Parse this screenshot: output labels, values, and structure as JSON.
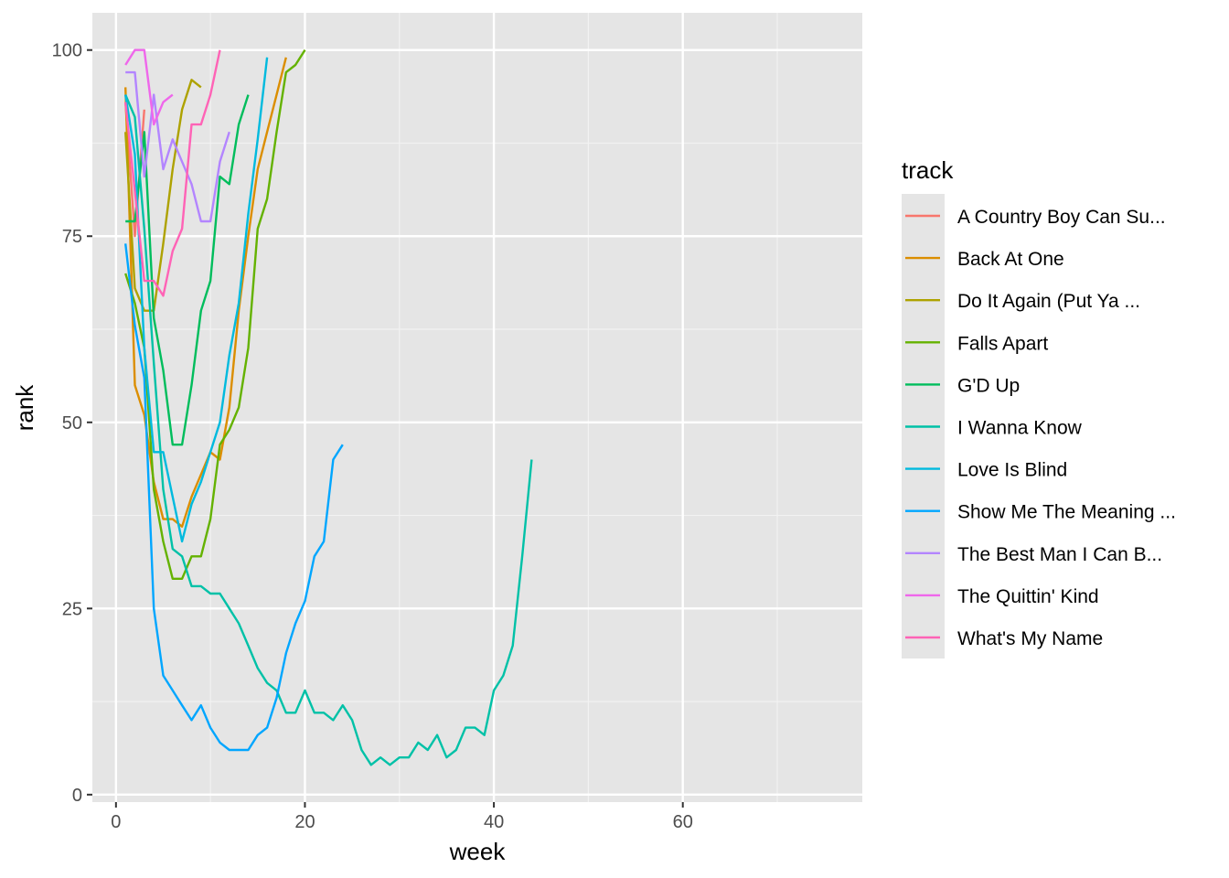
{
  "chart_data": {
    "type": "line",
    "xlabel": "week",
    "ylabel": "rank",
    "xlim": [
      -2.5,
      79
    ],
    "ylim": [
      -1,
      105
    ],
    "x_ticks": [
      0,
      20,
      40,
      60
    ],
    "y_ticks": [
      0,
      25,
      50,
      75,
      100
    ],
    "x_tick_labels": [
      "0",
      "20",
      "40",
      "60"
    ],
    "y_tick_labels": [
      "0",
      "25",
      "50",
      "75",
      "100"
    ],
    "grid": true,
    "panel_background": "#e5e5e5",
    "legend": {
      "title": "track",
      "position": "right"
    },
    "series": [
      {
        "name": "A Country Boy Can Su...",
        "color": "#F8766D",
        "x": [
          1,
          2,
          3
        ],
        "y": [
          93,
          75,
          92
        ]
      },
      {
        "name": "Back At One",
        "color": "#DB8E00",
        "x": [
          1,
          2,
          3,
          4,
          5,
          6,
          7,
          8,
          9,
          10,
          11,
          12,
          13,
          14,
          15,
          16,
          17,
          18
        ],
        "y": [
          95,
          55,
          51,
          42,
          37,
          37,
          36,
          40,
          43,
          46,
          45,
          52,
          65,
          75,
          84,
          89,
          94,
          99
        ]
      },
      {
        "name": "Do It Again (Put Ya ...",
        "color": "#AEA200",
        "x": [
          1,
          2,
          3,
          4,
          5,
          6,
          7,
          8,
          9
        ],
        "y": [
          89,
          68,
          65,
          65,
          74,
          84,
          92,
          96,
          95
        ]
      },
      {
        "name": "Falls Apart",
        "color": "#64B200",
        "x": [
          1,
          2,
          3,
          4,
          5,
          6,
          7,
          8,
          9,
          10,
          11,
          12,
          13,
          14,
          15,
          16,
          17,
          18,
          19,
          20
        ],
        "y": [
          70,
          66,
          60,
          41,
          34,
          29,
          29,
          32,
          32,
          37,
          47,
          49,
          52,
          60,
          76,
          80,
          89,
          97,
          98,
          100
        ]
      },
      {
        "name": "G'D Up",
        "color": "#00BD5C",
        "x": [
          1,
          2,
          3,
          4,
          5,
          6,
          7,
          8,
          9,
          10,
          11,
          12,
          13,
          14
        ],
        "y": [
          77,
          77,
          89,
          64,
          57,
          47,
          47,
          55,
          65,
          69,
          83,
          82,
          90,
          94
        ]
      },
      {
        "name": "I Wanna Know",
        "color": "#00C1A7",
        "x": [
          1,
          2,
          3,
          4,
          5,
          6,
          7,
          8,
          9,
          10,
          11,
          12,
          13,
          14,
          15,
          16,
          17,
          18,
          19,
          20,
          21,
          22,
          23,
          24,
          25,
          26,
          27,
          28,
          29,
          30,
          31,
          32,
          33,
          34,
          35,
          36,
          37,
          38,
          39,
          40,
          41,
          42,
          43,
          44
        ],
        "y": [
          94,
          91,
          76,
          58,
          41,
          33,
          32,
          28,
          28,
          27,
          27,
          25,
          23,
          20,
          17,
          15,
          14,
          11,
          11,
          14,
          11,
          11,
          10,
          12,
          10,
          6,
          4,
          5,
          4,
          5,
          5,
          7,
          6,
          8,
          5,
          6,
          9,
          9,
          8,
          14,
          16,
          20,
          32,
          45
        ]
      },
      {
        "name": "Love Is Blind",
        "color": "#00BADE",
        "x": [
          1,
          2,
          3,
          4,
          5,
          6,
          7,
          8,
          9,
          10,
          11,
          12,
          13,
          14,
          15,
          16
        ],
        "y": [
          94,
          86,
          60,
          46,
          46,
          40,
          34,
          39,
          42,
          46,
          50,
          59,
          66,
          78,
          88,
          99
        ]
      },
      {
        "name": "Show Me The Meaning ...",
        "color": "#00A6FF",
        "x": [
          1,
          2,
          3,
          4,
          5,
          6,
          7,
          8,
          9,
          10,
          11,
          12,
          13,
          14,
          15,
          16,
          17,
          18,
          19,
          20,
          21,
          22,
          23,
          24
        ],
        "y": [
          74,
          63,
          56,
          25,
          16,
          14,
          12,
          10,
          12,
          9,
          7,
          6,
          6,
          6,
          8,
          9,
          13,
          19,
          23,
          26,
          32,
          34,
          45,
          47
        ]
      },
      {
        "name": "The Best Man I Can B...",
        "color": "#B385FF",
        "x": [
          1,
          2,
          3,
          4,
          5,
          6,
          7,
          8,
          9,
          10,
          11,
          12
        ],
        "y": [
          97,
          97,
          83,
          94,
          84,
          88,
          85,
          82,
          77,
          77,
          85,
          89
        ]
      },
      {
        "name": "The Quittin' Kind",
        "color": "#EF67EB",
        "x": [
          1,
          2,
          3,
          4,
          5,
          6
        ],
        "y": [
          98,
          100,
          100,
          90,
          93,
          94
        ]
      },
      {
        "name": "What's My Name",
        "color": "#FF63B6",
        "x": [
          1,
          2,
          3,
          4,
          5,
          6,
          7,
          8,
          9,
          10,
          11
        ],
        "y": [
          93,
          81,
          69,
          69,
          67,
          73,
          76,
          90,
          90,
          94,
          100
        ]
      }
    ]
  }
}
